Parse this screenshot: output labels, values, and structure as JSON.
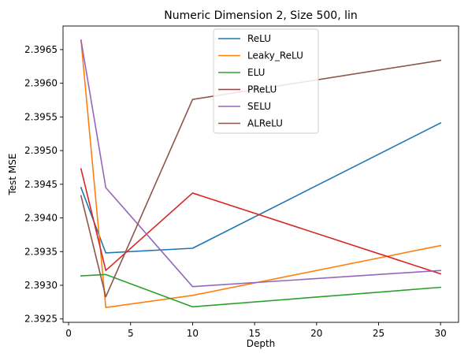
{
  "chart_data": {
    "type": "line",
    "title": "Numeric Dimension 2, Size 500, lin",
    "xlabel": "Depth",
    "ylabel": "Test MSE",
    "xlim": [
      -0.45,
      31.45
    ],
    "ylim": [
      2.39245,
      2.39685
    ],
    "x_ticks": [
      0,
      5,
      10,
      15,
      20,
      25,
      30
    ],
    "y_ticks": [
      2.3925,
      2.393,
      2.3935,
      2.394,
      2.3945,
      2.395,
      2.3955,
      2.396,
      2.3965
    ],
    "x_tick_labels": [
      "0",
      "5",
      "10",
      "15",
      "20",
      "25",
      "30"
    ],
    "y_tick_labels": [
      "2.3925",
      "2.3930",
      "2.3935",
      "2.3940",
      "2.3945",
      "2.3950",
      "2.3955",
      "2.3960",
      "2.3965"
    ],
    "grid": false,
    "legend_position": "upper-center",
    "x": [
      1,
      3,
      10,
      30
    ],
    "series": [
      {
        "name": "ReLU",
        "color": "#1f77b4",
        "values": [
          2.39445,
          2.39348,
          2.39355,
          2.39541
        ]
      },
      {
        "name": "Leaky_ReLU",
        "color": "#ff7f0e",
        "values": [
          2.39664,
          2.39267,
          2.39285,
          2.39359
        ]
      },
      {
        "name": "ELU",
        "color": "#2ca02c",
        "values": [
          2.39314,
          2.39316,
          2.39268,
          2.39297
        ]
      },
      {
        "name": "PReLU",
        "color": "#d62728",
        "values": [
          2.39473,
          2.39322,
          2.39437,
          2.39317
        ]
      },
      {
        "name": "SELU",
        "color": "#9467bd",
        "values": [
          2.39664,
          2.39445,
          2.39298,
          2.39322
        ]
      },
      {
        "name": "ALReLU",
        "color": "#8c564b",
        "values": [
          2.39433,
          2.39283,
          2.39576,
          2.39634
        ]
      }
    ]
  }
}
